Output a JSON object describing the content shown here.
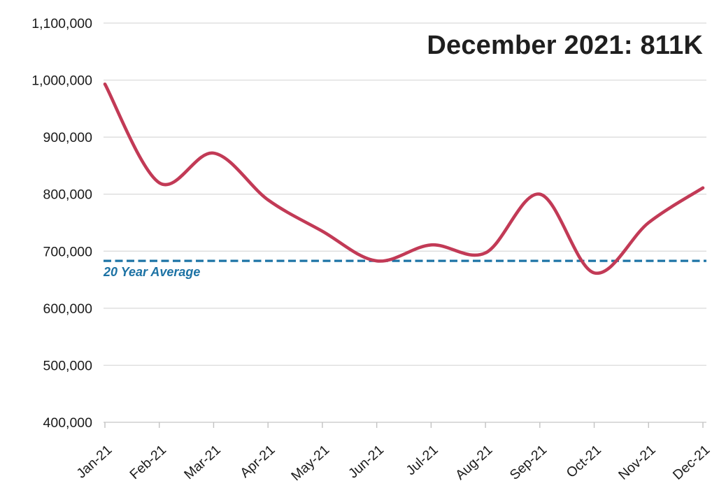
{
  "title": "December 2021: 811K",
  "colors": {
    "line": "#c23a56",
    "average_line": "#1d74a6",
    "average_label_text": "#1c72a4",
    "grid": "#d9d9d9",
    "axis": "#cfcfcf",
    "tick": "#c2c2c2",
    "text": "#1a1a1a",
    "title": "#1f1f1f",
    "background": "#ffffff"
  },
  "chart_data": {
    "type": "line",
    "title": "December 2021: 811K",
    "x": [
      "Jan-21",
      "Feb-21",
      "Mar-21",
      "Apr-21",
      "May-21",
      "Jun-21",
      "Jul-21",
      "Aug-21",
      "Sep-21",
      "Oct-21",
      "Nov-21",
      "Dec-21"
    ],
    "values": [
      993000,
      820000,
      872000,
      790000,
      735000,
      683000,
      711000,
      697000,
      800000,
      662000,
      750000,
      811000
    ],
    "average_line": {
      "label": "20 Year Average",
      "value": 683000,
      "style": "dashed"
    },
    "ylim": [
      400000,
      1100000
    ],
    "yticks": [
      1100000,
      1000000,
      900000,
      800000,
      700000,
      600000,
      500000,
      400000
    ],
    "ytick_labels": [
      "1,100,000",
      "1,000,000",
      "900,000",
      "800,000",
      "700,000",
      "600,000",
      "500,000",
      "400,000"
    ],
    "xlabel": "",
    "ylabel": "",
    "grid": true,
    "legend": "none",
    "smooth": true,
    "x_tick_rotation_deg": -42
  }
}
